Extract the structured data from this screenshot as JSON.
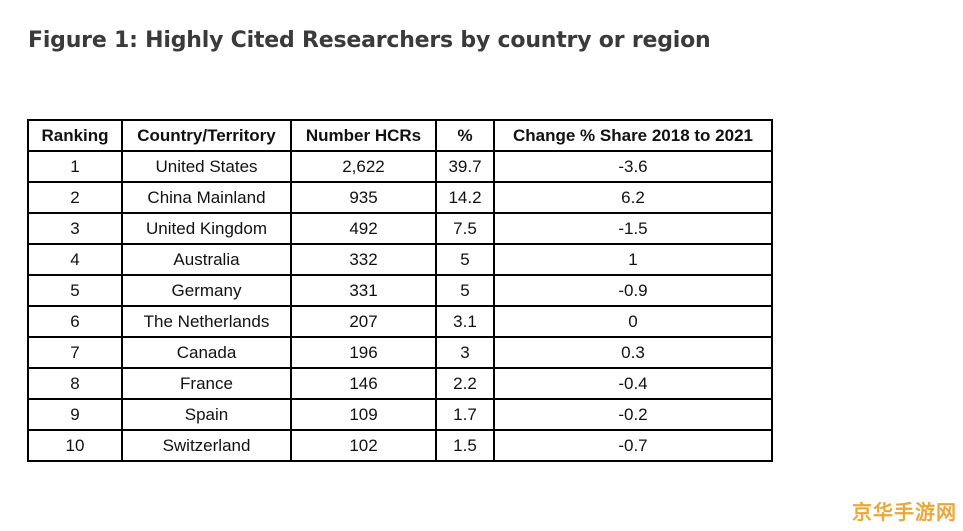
{
  "figure": {
    "title": "Figure 1: Highly Cited Researchers by country or region"
  },
  "table": {
    "headers": [
      "Ranking",
      "Country/Territory",
      "Number HCRs",
      "%",
      "Change % Share 2018 to 2021"
    ],
    "rows": [
      [
        "1",
        "United States",
        "2,622",
        "39.7",
        "-3.6"
      ],
      [
        "2",
        "China Mainland",
        "935",
        "14.2",
        "6.2"
      ],
      [
        "3",
        "United Kingdom",
        "492",
        "7.5",
        "-1.5"
      ],
      [
        "4",
        "Australia",
        "332",
        "5",
        "1"
      ],
      [
        "5",
        "Germany",
        "331",
        "5",
        "-0.9"
      ],
      [
        "6",
        "The Netherlands",
        "207",
        "3.1",
        "0"
      ],
      [
        "7",
        "Canada",
        "196",
        "3",
        "0.3"
      ],
      [
        "8",
        "France",
        "146",
        "2.2",
        "-0.4"
      ],
      [
        "9",
        "Spain",
        "109",
        "1.7",
        "-0.2"
      ],
      [
        "10",
        "Switzerland",
        "102",
        "1.5",
        "-0.7"
      ]
    ]
  },
  "watermark": {
    "text": "京华手游网",
    "color": "#e9a93a"
  }
}
